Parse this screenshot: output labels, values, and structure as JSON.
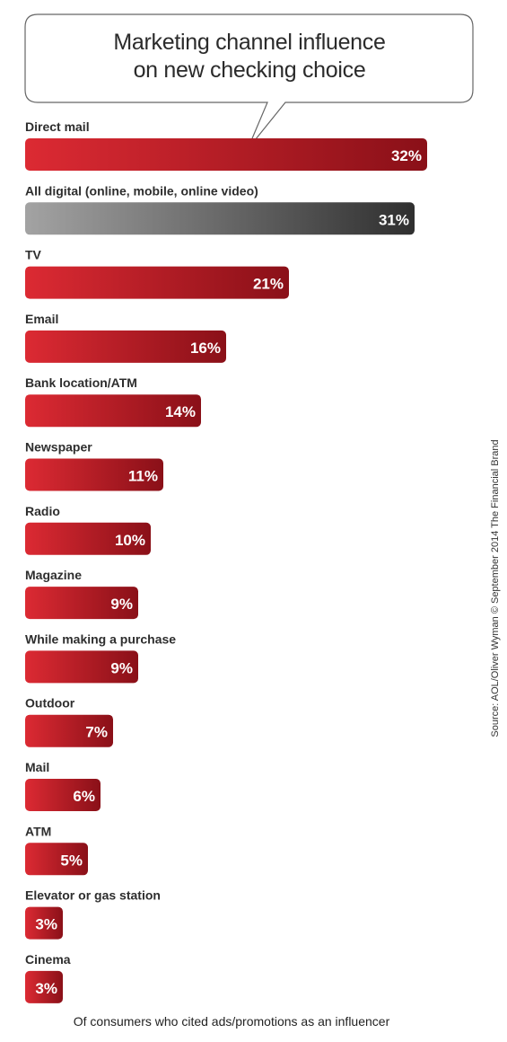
{
  "chart_data": {
    "type": "bar",
    "orientation": "horizontal",
    "title": "Marketing channel influence\non new checking choice",
    "categories": [
      "Direct mail",
      "All digital (online, mobile, online video)",
      "TV",
      "Email",
      "Bank location/ATM",
      "Newspaper",
      "Radio",
      "Magazine",
      "While making a purchase",
      "Outdoor",
      "Mail",
      "ATM",
      "Elevator or gas station",
      "Cinema"
    ],
    "values": [
      32,
      31,
      21,
      16,
      14,
      11,
      10,
      9,
      9,
      7,
      6,
      5,
      3,
      3
    ],
    "value_labels": [
      "32%",
      "31%",
      "21%",
      "16%",
      "14%",
      "11%",
      "10%",
      "9%",
      "9%",
      "7%",
      "6%",
      "5%",
      "3%",
      "3%"
    ],
    "highlight_index": 1,
    "colors": {
      "bar_light": "#dc2a33",
      "bar_dark": "#8a1018",
      "highlight_light": "#a3a3a3",
      "highlight_dark": "#2f2f2f"
    },
    "footnote": "Of consumers who cited ads/promotions as an influencer",
    "source": "Source: AOL/Oliver Wyman © September 2014 The Financial Brand"
  }
}
